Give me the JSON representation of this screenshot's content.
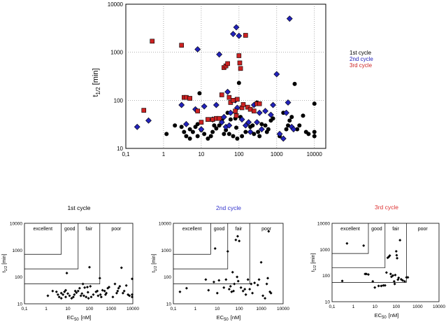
{
  "colors": {
    "c1": "#000000",
    "c2": "#2222bb",
    "c3": "#cc2222",
    "title2": "#3333cc",
    "title3": "#dd3333"
  },
  "chart_data": [
    {
      "type": "scatter",
      "id": "main",
      "ylabel_main": "t",
      "ylabel_sub": "1/2",
      "ylabel_unit": "[min]",
      "xscale": "log",
      "yscale": "log",
      "xlim": [
        0.1,
        20000
      ],
      "ylim": [
        10,
        10000
      ],
      "xticks": [
        0.1,
        1,
        10,
        100,
        1000,
        10000
      ],
      "xtick_labels": [
        "0,1",
        "1",
        "10",
        "100",
        "1000",
        "10000"
      ],
      "yticks": [
        10,
        100,
        1000,
        10000
      ],
      "ytick_labels": [
        "10",
        "100",
        "1000",
        "10000"
      ],
      "grid": "dotted",
      "legend": "right",
      "series": [
        {
          "name": "1st cycle",
          "marker": "circle",
          "color": "c1",
          "x": [
            1.2,
            2,
            3,
            3.5,
            4,
            5,
            5,
            6,
            7,
            8,
            8,
            9,
            10,
            12,
            15,
            18,
            20,
            22,
            25,
            30,
            35,
            40,
            45,
            50,
            55,
            60,
            70,
            80,
            85,
            90,
            100,
            110,
            120,
            150,
            200,
            230,
            250,
            300,
            320,
            350,
            400,
            500,
            550,
            600,
            700,
            800,
            1200,
            1500,
            1800,
            2000,
            2200,
            2500,
            3000,
            3500,
            4000,
            5000,
            6000,
            7000,
            10000,
            10000,
            10000
          ],
          "y": [
            20,
            30,
            28,
            22,
            18,
            25,
            16,
            22,
            28,
            18,
            32,
            140,
            24,
            20,
            16,
            18,
            22,
            30,
            26,
            30,
            38,
            20,
            24,
            55,
            20,
            40,
            18,
            42,
            27,
            16,
            230,
            45,
            18,
            22,
            28,
            30,
            20,
            90,
            22,
            18,
            32,
            30,
            22,
            25,
            38,
            42,
            18,
            55,
            25,
            30,
            38,
            45,
            220,
            25,
            30,
            48,
            22,
            20,
            22,
            18,
            85
          ]
        },
        {
          "name": "2nd cycle",
          "marker": "diamond",
          "color": "c2",
          "x": [
            0.2,
            0.4,
            3,
            4,
            7,
            8,
            10,
            12,
            20,
            25,
            30,
            35,
            40,
            45,
            50,
            55,
            60,
            70,
            80,
            85,
            90,
            100,
            120,
            150,
            180,
            200,
            250,
            300,
            350,
            400,
            500,
            700,
            800,
            1000,
            1200,
            1500,
            1800,
            2000,
            2200,
            2500,
            2800
          ],
          "y": [
            28,
            38,
            80,
            32,
            65,
            1150,
            25,
            75,
            40,
            80,
            900,
            35,
            45,
            28,
            150,
            30,
            55,
            2400,
            100,
            3300,
            70,
            2200,
            40,
            30,
            35,
            22,
            80,
            35,
            55,
            25,
            60,
            50,
            80,
            350,
            20,
            16,
            55,
            90,
            5000,
            28,
            25
          ]
        },
        {
          "name": "3rd cycle",
          "marker": "square",
          "color": "c3",
          "x": [
            0.3,
            0.5,
            3,
            3.5,
            4,
            5,
            8,
            10,
            15,
            20,
            25,
            30,
            35,
            40,
            45,
            50,
            55,
            60,
            70,
            80,
            85,
            90,
            100,
            105,
            110,
            120,
            130,
            150,
            170,
            200,
            250,
            300,
            350
          ],
          "y": [
            62,
            1700,
            1400,
            115,
            115,
            110,
            60,
            35,
            40,
            40,
            42,
            42,
            130,
            480,
            520,
            580,
            115,
            90,
            100,
            60,
            48,
            105,
            850,
            600,
            460,
            70,
            82,
            2250,
            72,
            65,
            60,
            85,
            85
          ]
        }
      ]
    },
    {
      "type": "scatter",
      "id": "sub1",
      "title": "1st cycle",
      "title_color": "c1",
      "xlabel_main": "EC",
      "xlabel_sub": "50",
      "xlabel_unit": "[nM]",
      "ylabel_main": "t",
      "ylabel_sub": "1/2",
      "ylabel_unit": "[min]",
      "xscale": "log",
      "yscale": "log",
      "xlim": [
        0.1,
        10000
      ],
      "ylim": [
        10,
        10000
      ],
      "xtick_labels": [
        "0,1",
        "1",
        "10",
        "100",
        "1000",
        "10000"
      ],
      "ytick_labels": [
        "10",
        "100",
        "1000",
        "10000"
      ],
      "regions": [
        "excellent",
        "good",
        "fair",
        "poor"
      ],
      "series": [
        {
          "name": "1st cycle",
          "marker": "diamond",
          "color": "c1",
          "x": [
            1.2,
            2,
            3,
            3.5,
            4,
            5,
            5,
            6,
            7,
            8,
            8,
            9,
            10,
            12,
            15,
            18,
            20,
            22,
            25,
            30,
            35,
            40,
            45,
            50,
            55,
            60,
            70,
            80,
            85,
            90,
            100,
            110,
            120,
            150,
            200,
            230,
            250,
            300,
            320,
            350,
            400,
            500,
            550,
            600,
            700,
            800,
            1200,
            1500,
            1800,
            2000,
            2200,
            2500,
            3000,
            3500,
            4000,
            5000,
            6000,
            7000,
            10000,
            10000,
            10000
          ],
          "y": [
            20,
            30,
            28,
            22,
            18,
            25,
            16,
            22,
            28,
            18,
            32,
            140,
            24,
            20,
            16,
            18,
            22,
            30,
            26,
            30,
            38,
            20,
            24,
            55,
            20,
            40,
            18,
            42,
            27,
            16,
            230,
            45,
            18,
            22,
            28,
            30,
            20,
            90,
            22,
            18,
            32,
            30,
            22,
            25,
            38,
            42,
            18,
            55,
            25,
            30,
            38,
            45,
            220,
            25,
            30,
            48,
            22,
            20,
            22,
            18,
            85
          ]
        }
      ]
    },
    {
      "type": "scatter",
      "id": "sub2",
      "title": "2nd cycle",
      "title_color": "title2",
      "xlabel_main": "EC",
      "xlabel_sub": "50",
      "xlabel_unit": "[nM]",
      "ylabel_main": "t",
      "ylabel_sub": "1/2",
      "ylabel_unit": "[min]",
      "xscale": "log",
      "yscale": "log",
      "xlim": [
        0.1,
        10000
      ],
      "ylim": [
        10,
        10000
      ],
      "xtick_labels": [
        "0,1",
        "1",
        "10",
        "100",
        "1000",
        "10000"
      ],
      "ytick_labels": [
        "10",
        "100",
        "1000",
        "10000"
      ],
      "regions": [
        "excellent",
        "good",
        "fair",
        "poor"
      ],
      "series": [
        {
          "name": "2nd cycle",
          "marker": "diamond",
          "color": "c1",
          "x": [
            0.2,
            0.4,
            3,
            4,
            7,
            8,
            10,
            12,
            20,
            25,
            30,
            35,
            40,
            45,
            50,
            55,
            60,
            70,
            80,
            85,
            90,
            100,
            120,
            150,
            180,
            200,
            250,
            300,
            350,
            400,
            500,
            700,
            800,
            1000,
            1200,
            1500,
            1800,
            2000,
            2200,
            2500,
            2800
          ],
          "y": [
            28,
            38,
            80,
            32,
            65,
            1150,
            25,
            75,
            40,
            80,
            900,
            35,
            45,
            28,
            150,
            30,
            55,
            2400,
            100,
            3300,
            70,
            2200,
            40,
            30,
            35,
            22,
            80,
            35,
            55,
            25,
            60,
            50,
            80,
            350,
            20,
            16,
            55,
            90,
            5000,
            28,
            25
          ]
        }
      ]
    },
    {
      "type": "scatter",
      "id": "sub3",
      "title": "3rd cycle",
      "title_color": "title3",
      "xlabel_main": "EC",
      "xlabel_sub": "50",
      "xlabel_unit": "[nM]",
      "ylabel_main": "t",
      "ylabel_sub": "1/2",
      "ylabel_unit": "[min]",
      "xscale": "log",
      "yscale": "log",
      "xlim": [
        0.1,
        10000
      ],
      "ylim": [
        10,
        10000
      ],
      "xtick_labels": [
        "0,1",
        "1",
        "10",
        "100",
        "1000",
        "10000"
      ],
      "ytick_labels": [
        "10",
        "100",
        "1000",
        "10000"
      ],
      "regions": [
        "excellent",
        "good",
        "fair",
        "poor"
      ],
      "series": [
        {
          "name": "3rd cycle",
          "marker": "diamond",
          "color": "c1",
          "x": [
            0.3,
            0.5,
            3,
            3.5,
            4,
            5,
            8,
            10,
            15,
            20,
            25,
            30,
            35,
            40,
            45,
            50,
            55,
            60,
            70,
            80,
            85,
            90,
            100,
            105,
            110,
            120,
            130,
            150,
            170,
            200,
            250,
            300,
            350
          ],
          "y": [
            62,
            1700,
            1400,
            115,
            115,
            110,
            60,
            35,
            40,
            40,
            42,
            42,
            130,
            480,
            520,
            580,
            115,
            90,
            100,
            60,
            48,
            105,
            850,
            600,
            460,
            70,
            82,
            2250,
            72,
            65,
            60,
            85,
            85
          ]
        }
      ]
    }
  ]
}
